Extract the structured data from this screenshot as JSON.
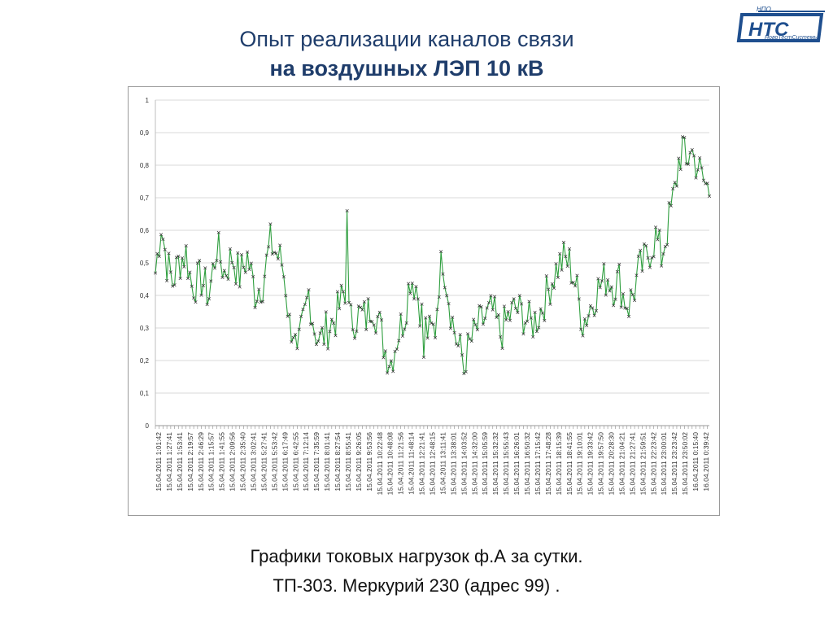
{
  "slide": {
    "title_line1": "Опыт реализации каналов связи",
    "title_line2": "на воздушных ЛЭП 10 кВ",
    "caption_line1": "Графики токовых нагрузок ф.А за сутки.",
    "caption_line2": "ТП-303. Меркурий 230 (адрес 99) ."
  },
  "logo": {
    "small_text": "НПО",
    "main_text": "НТС",
    "sub_text": "НовоТестСистемы",
    "color": "#1f4f8f"
  },
  "colors": {
    "series": "#2e9e3e",
    "marker": "#333333",
    "grid": "#d9d9d9",
    "axis_text": "#333333"
  },
  "chart_data": {
    "type": "line",
    "ylim": [
      0,
      1
    ],
    "yticks": [
      "0",
      "0,1",
      "0,2",
      "0,3",
      "0,4",
      "0,5",
      "0,6",
      "0,7",
      "0,8",
      "0,9",
      "1"
    ],
    "x_tick_labels": [
      "15.04.2011 1:01:42",
      "15.04.2011 1:27:41",
      "15.04.2011 1:53:41",
      "15.04.2011 2:19:57",
      "15.04.2011 2:46:29",
      "15.04.2011 1:15:57",
      "15.04.2011 1:41:55",
      "15.04.2011 2:09:56",
      "15.04.2011 2:35:40",
      "15.04.2011 3:02:41",
      "15.04.2011 5:27:41",
      "15.04.2011 5:53:42",
      "15.04.2011 6:17:49",
      "15.04.2011 6:42:55",
      "15.04.2011 7:12:14",
      "15.04.2011 7:35:59",
      "15.04.2011 8:01:41",
      "15.04.2011 8:27:54",
      "15.04.2011 8:55:41",
      "15.04.2011 9:26:05",
      "15.04.2011 9:53:56",
      "15.04.2011 10:22:48",
      "15.04.2011 10:48:08",
      "15.04.2011 11:21:56",
      "15.04.2011 11:48:14",
      "15.04.2011 12:21:41",
      "15.04.2011 12:48:15",
      "15.04.2011 13:11:41",
      "15.04.2011 13:38:01",
      "15.04.2011 14:03:52",
      "15.04.2011 14:32:00",
      "15.04.2011 15:05:59",
      "15.04.2011 15:32:32",
      "15.04.2011 15:55:43",
      "15.04.2011 16:26:01",
      "15.04.2011 16:50:32",
      "15.04.2011 17:15:42",
      "15.04.2011 17:48:28",
      "15.04.2011 18:15:39",
      "15.04.2011 18:41:55",
      "15.04.2011 19:10:01",
      "15.04.2011 19:33:42",
      "15.04.2011 19:57:50",
      "15.04.2011 20:28:30",
      "15.04.2011 21:04:21",
      "15.04.2011 21:27:41",
      "15.04.2011 21:59:51",
      "15.04.2011 22:23:42",
      "15.04.2011 23:00:01",
      "15.04.2011 23:23:42",
      "15.04.2011 23:50:02",
      "16.04.2011 0:15:40",
      "16.04.2011 0:39:42"
    ],
    "n_points": 290,
    "anchors": [
      [
        0,
        0.47
      ],
      [
        3,
        0.62
      ],
      [
        6,
        0.5
      ],
      [
        9,
        0.44
      ],
      [
        12,
        0.5
      ],
      [
        16,
        0.53
      ],
      [
        19,
        0.43
      ],
      [
        24,
        0.45
      ],
      [
        28,
        0.4
      ],
      [
        32,
        0.55
      ],
      [
        36,
        0.47
      ],
      [
        40,
        0.52
      ],
      [
        44,
        0.46
      ],
      [
        48,
        0.52
      ],
      [
        52,
        0.41
      ],
      [
        56,
        0.44
      ],
      [
        60,
        0.56
      ],
      [
        63,
        0.53
      ],
      [
        66,
        0.5
      ],
      [
        68,
        0.43
      ],
      [
        70,
        0.31
      ],
      [
        72,
        0.3
      ],
      [
        74,
        0.19
      ],
      [
        76,
        0.28
      ],
      [
        78,
        0.34
      ],
      [
        80,
        0.41
      ],
      [
        83,
        0.3
      ],
      [
        86,
        0.26
      ],
      [
        90,
        0.3
      ],
      [
        94,
        0.33
      ],
      [
        98,
        0.4
      ],
      [
        102,
        0.32
      ],
      [
        106,
        0.34
      ],
      [
        110,
        0.33
      ],
      [
        113,
        0.38
      ],
      [
        116,
        0.33
      ],
      [
        118,
        0.28
      ],
      [
        120,
        0.23
      ],
      [
        123,
        0.2
      ],
      [
        126,
        0.27
      ],
      [
        130,
        0.34
      ],
      [
        133,
        0.46
      ],
      [
        136,
        0.43
      ],
      [
        140,
        0.31
      ],
      [
        143,
        0.28
      ],
      [
        146,
        0.3
      ],
      [
        148,
        0.45
      ],
      [
        150,
        0.52
      ],
      [
        152,
        0.44
      ],
      [
        155,
        0.32
      ],
      [
        158,
        0.24
      ],
      [
        161,
        0.2
      ],
      [
        165,
        0.26
      ],
      [
        168,
        0.3
      ],
      [
        172,
        0.33
      ],
      [
        176,
        0.35
      ],
      [
        180,
        0.28
      ],
      [
        184,
        0.33
      ],
      [
        188,
        0.36
      ],
      [
        192,
        0.34
      ],
      [
        196,
        0.31
      ],
      [
        200,
        0.34
      ],
      [
        204,
        0.4
      ],
      [
        207,
        0.45
      ],
      [
        210,
        0.49
      ],
      [
        213,
        0.51
      ],
      [
        216,
        0.5
      ],
      [
        219,
        0.44
      ],
      [
        221,
        0.38
      ],
      [
        223,
        0.32
      ],
      [
        226,
        0.35
      ],
      [
        229,
        0.4
      ],
      [
        232,
        0.43
      ],
      [
        236,
        0.46
      ],
      [
        239,
        0.43
      ],
      [
        242,
        0.45
      ],
      [
        244,
        0.4
      ],
      [
        247,
        0.37
      ],
      [
        250,
        0.42
      ],
      [
        252,
        0.47
      ],
      [
        255,
        0.5
      ],
      [
        258,
        0.54
      ],
      [
        261,
        0.58
      ],
      [
        264,
        0.52
      ],
      [
        267,
        0.6
      ],
      [
        269,
        0.66
      ],
      [
        271,
        0.72
      ],
      [
        273,
        0.81
      ],
      [
        275,
        0.86
      ],
      [
        277,
        0.79
      ],
      [
        279,
        0.86
      ],
      [
        281,
        0.82
      ],
      [
        283,
        0.8
      ],
      [
        285,
        0.76
      ],
      [
        287,
        0.74
      ],
      [
        289,
        0.72
      ]
    ],
    "spikes": [
      [
        100,
        0.66
      ],
      [
        140,
        0.21
      ],
      [
        161,
        0.16
      ]
    ]
  }
}
